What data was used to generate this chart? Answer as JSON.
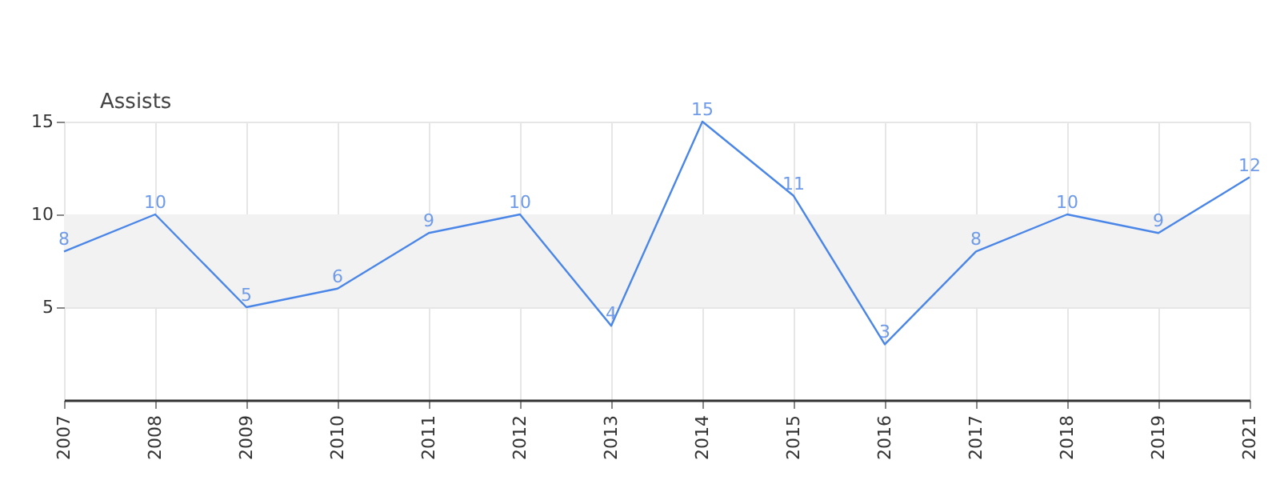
{
  "chart_data": {
    "type": "line",
    "ylabel": "Assists",
    "categories": [
      "2007",
      "2008",
      "2009",
      "2010",
      "2011",
      "2012",
      "2013",
      "2014",
      "2015",
      "2016",
      "2017",
      "2018",
      "2019",
      "2021"
    ],
    "series": [
      {
        "color": "#4a86e8",
        "values": [
          8,
          10,
          5,
          6,
          9,
          10,
          4,
          15,
          11,
          3,
          8,
          10,
          9,
          12
        ]
      }
    ],
    "ylim": [
      0,
      15
    ],
    "yticks": [
      5,
      10,
      15
    ],
    "grid": true,
    "data_labels": true,
    "bands": [
      {
        "axis": "y",
        "from": 5,
        "to": 10,
        "color": "#f2f2f2"
      }
    ]
  }
}
